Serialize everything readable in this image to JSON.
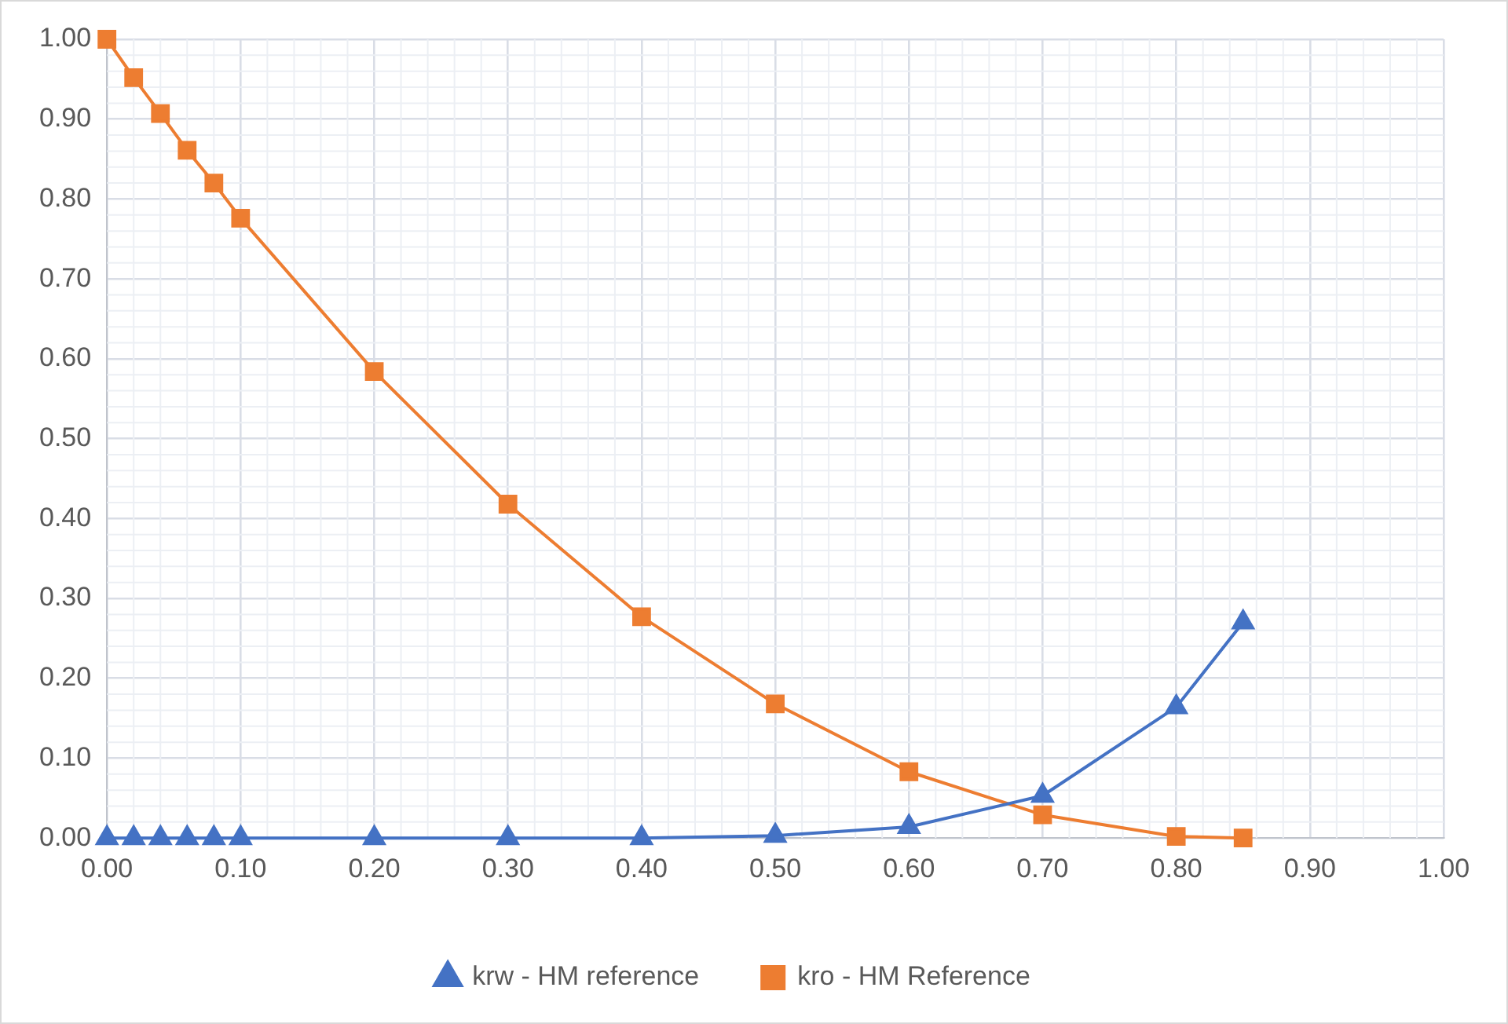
{
  "chart_data": {
    "type": "line",
    "x": [
      0,
      0.02,
      0.04,
      0.06,
      0.08,
      0.1,
      0.2,
      0.3,
      0.4,
      0.5,
      0.6,
      0.7,
      0.8,
      0.85
    ],
    "series": [
      {
        "name": "krw - HM reference",
        "color": "#4472c4",
        "marker": "triangle",
        "values": [
          0,
          0,
          0,
          0,
          0,
          0,
          0,
          0,
          0,
          0.003,
          0.014,
          0.053,
          0.164,
          0.27
        ]
      },
      {
        "name": "kro - HM Reference",
        "color": "#ed7d31",
        "marker": "square",
        "values": [
          1,
          0.952,
          0.907,
          0.861,
          0.82,
          0.776,
          0.584,
          0.418,
          0.277,
          0.168,
          0.083,
          0.029,
          0.002,
          0
        ]
      }
    ],
    "xlim": [
      0,
      1
    ],
    "xticks": [
      {
        "value": 0,
        "label": "0.00"
      },
      {
        "value": 0.1,
        "label": "0.10"
      },
      {
        "value": 0.2,
        "label": "0.20"
      },
      {
        "value": 0.3,
        "label": "0.30"
      },
      {
        "value": 0.4,
        "label": "0.40"
      },
      {
        "value": 0.5,
        "label": "0.50"
      },
      {
        "value": 0.6,
        "label": "0.60"
      },
      {
        "value": 0.7,
        "label": "0.70"
      },
      {
        "value": 0.8,
        "label": "0.80"
      },
      {
        "value": 0.9,
        "label": "0.90"
      },
      {
        "value": 1,
        "label": "1.00"
      }
    ],
    "ylim": [
      0,
      1
    ],
    "yticks": [
      {
        "value": 0,
        "label": "0.00"
      },
      {
        "value": 0.1,
        "label": "0.10"
      },
      {
        "value": 0.2,
        "label": "0.20"
      },
      {
        "value": 0.3,
        "label": "0.30"
      },
      {
        "value": 0.4,
        "label": "0.40"
      },
      {
        "value": 0.5,
        "label": "0.50"
      },
      {
        "value": 0.6,
        "label": "0.60"
      },
      {
        "value": 0.7,
        "label": "0.70"
      },
      {
        "value": 0.8,
        "label": "0.80"
      },
      {
        "value": 0.9,
        "label": "0.90"
      },
      {
        "value": 1,
        "label": "1.00"
      }
    ],
    "grid": true,
    "legend": "bottom",
    "line_style": "solid"
  }
}
